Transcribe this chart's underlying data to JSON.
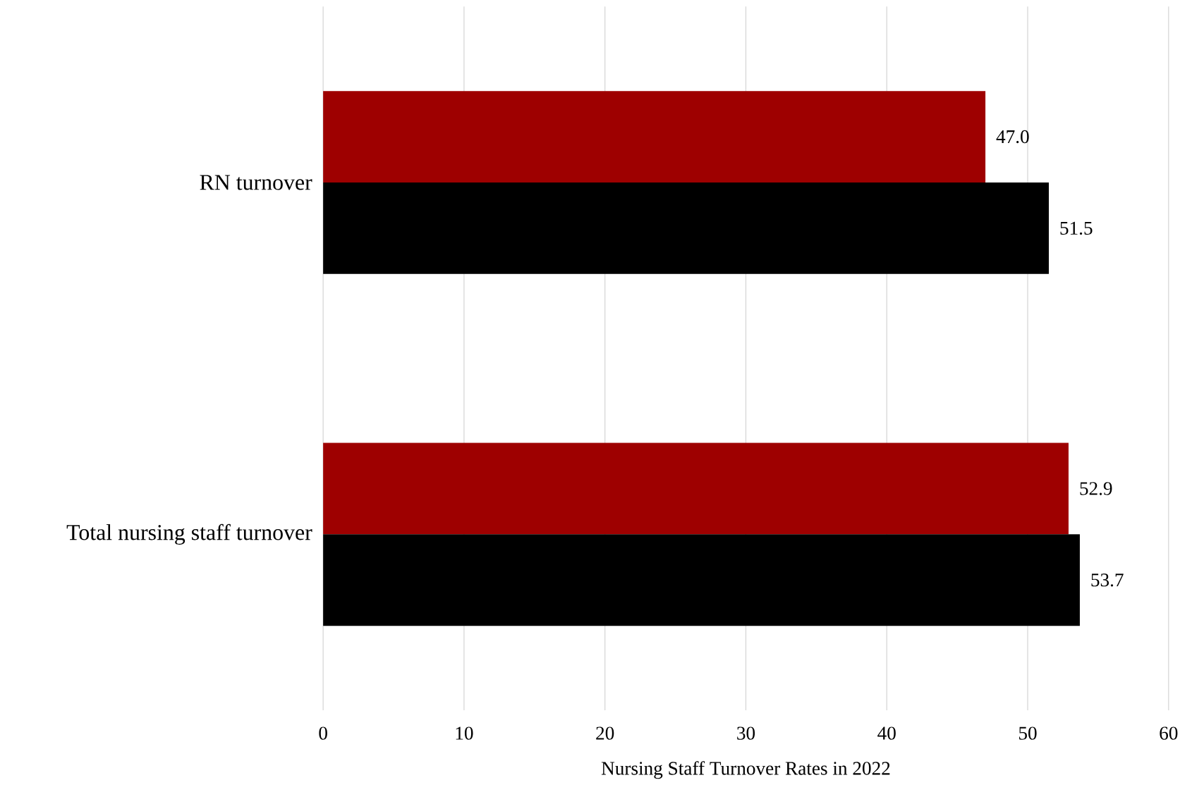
{
  "chart_data": {
    "type": "bar",
    "orientation": "horizontal",
    "xlabel": "Nursing Staff Turnover Rates in 2022",
    "categories": [
      "RN turnover",
      "Total nursing staff turnover"
    ],
    "series": [
      {
        "color": "#9e0000",
        "values": [
          47.0,
          52.9
        ],
        "value_labels": [
          "47.0",
          "52.9"
        ]
      },
      {
        "color": "#000000",
        "values": [
          51.5,
          53.7
        ],
        "value_labels": [
          "51.5",
          "53.7"
        ]
      }
    ],
    "xlim": [
      0,
      60
    ],
    "xticks": [
      0,
      10,
      20,
      30,
      40,
      50,
      60
    ],
    "grid": "x"
  }
}
